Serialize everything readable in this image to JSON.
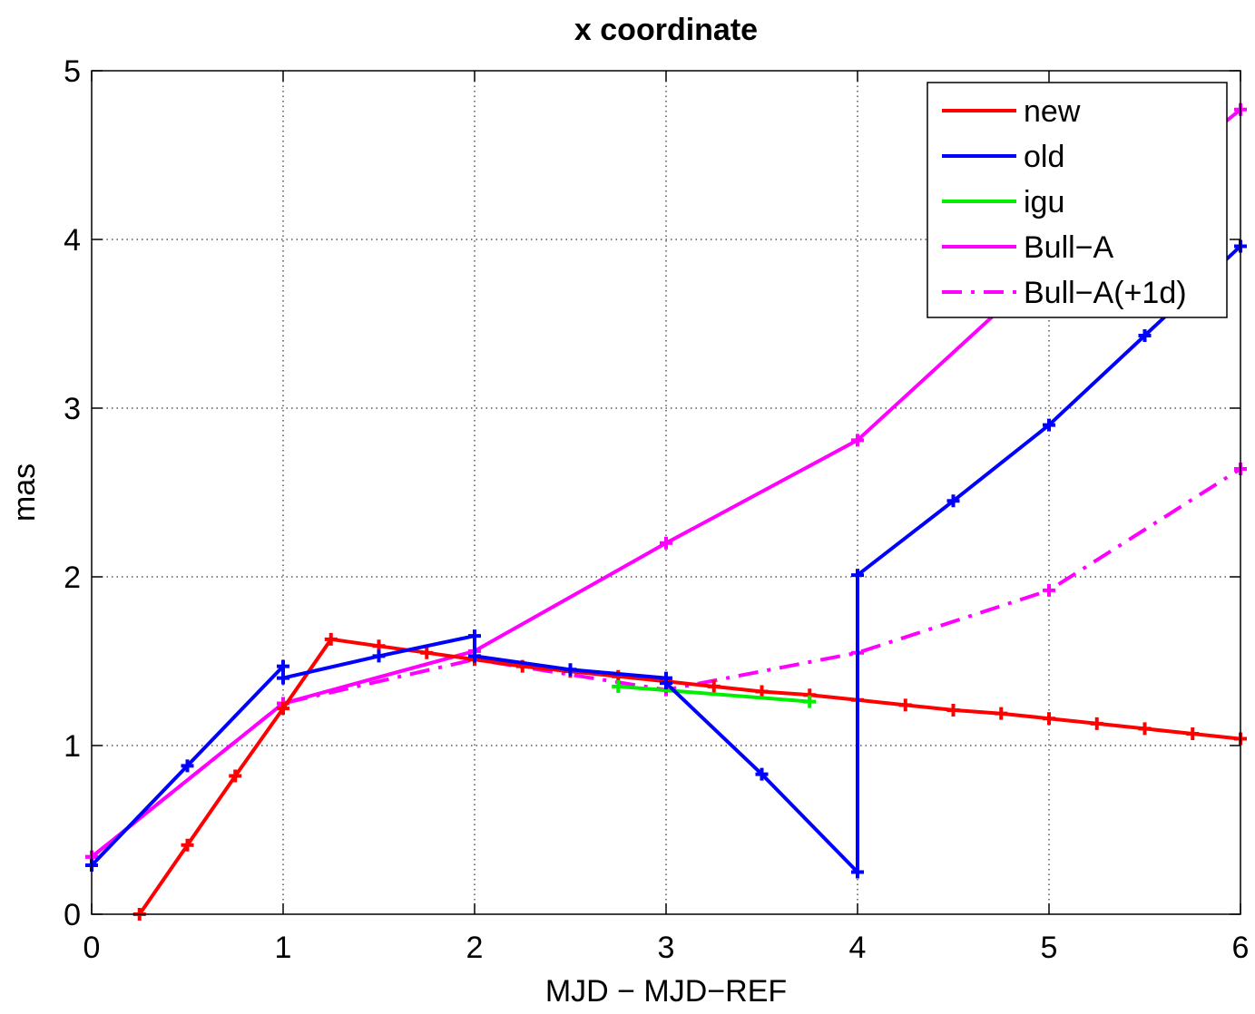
{
  "chart_data": {
    "type": "line",
    "title": "x coordinate",
    "xlabel": "MJD − MJD−REF",
    "ylabel": "mas",
    "xlim": [
      0,
      6
    ],
    "ylim": [
      0,
      5
    ],
    "xticks": [
      "0",
      "1",
      "2",
      "3",
      "4",
      "5",
      "6"
    ],
    "yticks": [
      "0",
      "1",
      "2",
      "3",
      "4",
      "5"
    ],
    "grid": true,
    "legend_position": "top-right",
    "series": [
      {
        "name": "new",
        "color": "#ff0000",
        "style": "solid",
        "marker": "plus",
        "x": [
          0.25,
          0.5,
          0.75,
          1.0,
          1.25,
          1.5,
          1.75,
          2.0,
          2.25,
          2.5,
          2.75,
          3.0,
          3.25,
          3.5,
          3.75,
          4.0,
          4.25,
          4.5,
          4.75,
          5.0,
          5.25,
          5.5,
          5.75,
          6.0
        ],
        "y": [
          0.0,
          0.41,
          0.82,
          1.22,
          1.63,
          1.59,
          1.55,
          1.51,
          1.47,
          1.44,
          1.41,
          1.38,
          1.35,
          1.32,
          1.3,
          1.27,
          1.24,
          1.21,
          1.19,
          1.16,
          1.13,
          1.1,
          1.07,
          1.04
        ]
      },
      {
        "name": "old",
        "color": "#0000ff",
        "style": "solid",
        "marker": "plus",
        "x": [
          0.0,
          0.5,
          1.0,
          1.0,
          1.5,
          2.0,
          2.0,
          2.5,
          3.0,
          3.0,
          3.5,
          4.0,
          4.0,
          4.5,
          5.0,
          5.5,
          6.0
        ],
        "y": [
          0.29,
          0.88,
          1.47,
          1.4,
          1.53,
          1.65,
          1.53,
          1.45,
          1.4,
          1.37,
          0.83,
          0.25,
          2.01,
          2.45,
          2.9,
          3.43,
          3.96
        ]
      },
      {
        "name": "igu",
        "color": "#00ee00",
        "style": "solid",
        "marker": "plus",
        "x": [
          2.75,
          3.75
        ],
        "y": [
          1.35,
          1.26
        ]
      },
      {
        "name": "Bull−A",
        "color": "#ff00ff",
        "style": "solid",
        "marker": "plus",
        "x": [
          0.0,
          1.0,
          2.0,
          3.0,
          4.0,
          5.0,
          6.0
        ],
        "y": [
          0.34,
          1.25,
          1.56,
          2.2,
          2.81,
          3.85,
          4.77
        ]
      },
      {
        "name": "Bull−A(+1d)",
        "color": "#ff00ff",
        "style": "dashdot",
        "marker": "plus",
        "x": [
          0.0,
          1.0,
          2.0,
          3.0,
          4.0,
          5.0,
          6.0
        ],
        "y": [
          0.34,
          1.25,
          1.51,
          1.33,
          1.55,
          1.92,
          2.64
        ]
      }
    ]
  }
}
